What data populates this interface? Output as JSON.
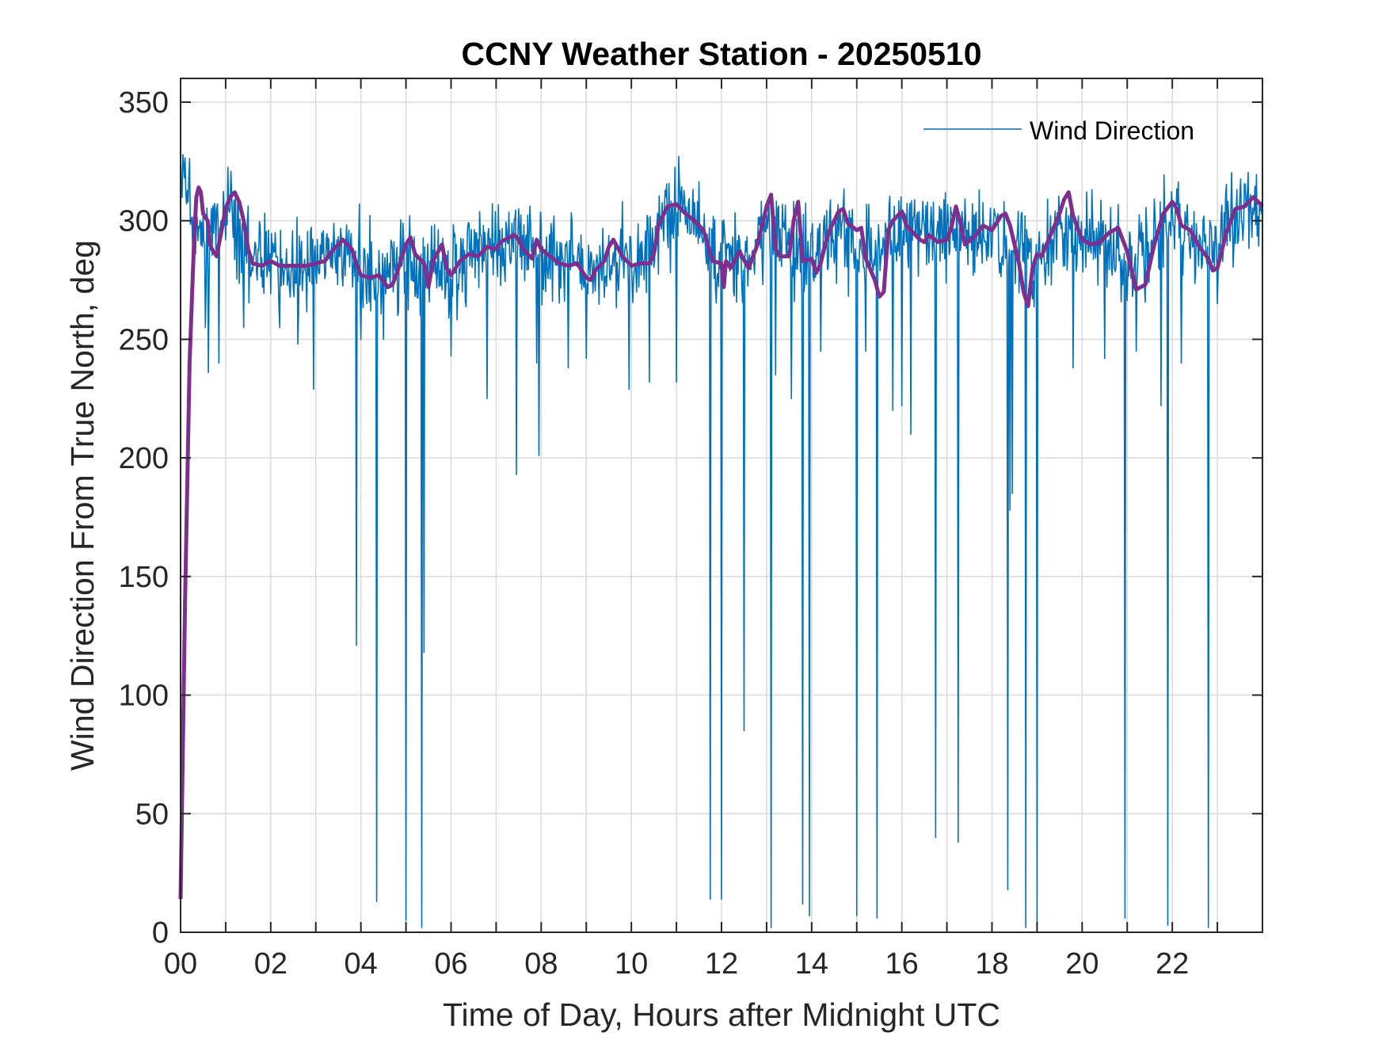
{
  "chart_data": {
    "type": "line",
    "title": "CCNY Weather Station - 20250510",
    "xlabel": "Time of Day, Hours after Midnight UTC",
    "ylabel": "Wind Direction From True North, deg",
    "xlim": [
      0,
      24
    ],
    "ylim": [
      0,
      360
    ],
    "grid": true,
    "legend_position": "top-right",
    "x_ticks": [
      0,
      2,
      4,
      6,
      8,
      10,
      12,
      14,
      16,
      18,
      20,
      22
    ],
    "x_tick_labels": [
      "00",
      "02",
      "04",
      "06",
      "08",
      "10",
      "12",
      "14",
      "16",
      "18",
      "20",
      "22"
    ],
    "y_ticks": [
      0,
      50,
      100,
      150,
      200,
      250,
      300,
      350
    ],
    "y_tick_labels": [
      "0",
      "50",
      "100",
      "150",
      "200",
      "250",
      "300",
      "350"
    ],
    "colors": {
      "raw": "#0072bd",
      "smoothed": "#7e2f8e"
    },
    "series": [
      {
        "name": "Wind Direction",
        "kind": "raw",
        "in_legend": true,
        "x_step_hours": 0.0166667,
        "baseline_points": [
          [
            0,
            325
          ],
          [
            0.3,
            300
          ],
          [
            0.6,
            290
          ],
          [
            1,
            305
          ],
          [
            1.2,
            300
          ],
          [
            1.5,
            285
          ],
          [
            2,
            283
          ],
          [
            2.5,
            282
          ],
          [
            3,
            283
          ],
          [
            3.5,
            290
          ],
          [
            4,
            280
          ],
          [
            4.5,
            276
          ],
          [
            5,
            285
          ],
          [
            5.5,
            280
          ],
          [
            6,
            282
          ],
          [
            6.5,
            287
          ],
          [
            7,
            290
          ],
          [
            7.5,
            292
          ],
          [
            8,
            286
          ],
          [
            8.5,
            283
          ],
          [
            9,
            278
          ],
          [
            9.5,
            285
          ],
          [
            10,
            280
          ],
          [
            10.5,
            290
          ],
          [
            11,
            305
          ],
          [
            11.5,
            298
          ],
          [
            12,
            282
          ],
          [
            12.5,
            284
          ],
          [
            13,
            300
          ],
          [
            13.5,
            288
          ],
          [
            14,
            286
          ],
          [
            14.5,
            296
          ],
          [
            15,
            290
          ],
          [
            15.5,
            288
          ],
          [
            16,
            296
          ],
          [
            16.5,
            293
          ],
          [
            17,
            296
          ],
          [
            17.5,
            292
          ],
          [
            18,
            296
          ],
          [
            18.5,
            288
          ],
          [
            19,
            284
          ],
          [
            19.5,
            296
          ],
          [
            20,
            292
          ],
          [
            20.5,
            293
          ],
          [
            21,
            280
          ],
          [
            21.5,
            290
          ],
          [
            22,
            302
          ],
          [
            22.5,
            290
          ],
          [
            23,
            288
          ],
          [
            23.5,
            303
          ],
          [
            24,
            306
          ]
        ],
        "noise_amplitude": 28,
        "dropouts": [
          [
            0.55,
            255
          ],
          [
            0.62,
            236
          ],
          [
            0.85,
            240
          ],
          [
            1.4,
            255
          ],
          [
            2.2,
            255
          ],
          [
            2.6,
            248
          ],
          [
            2.95,
            229
          ],
          [
            3.9,
            121
          ],
          [
            4.0,
            250
          ],
          [
            4.35,
            13
          ],
          [
            4.5,
            250
          ],
          [
            5.0,
            5
          ],
          [
            5.35,
            2
          ],
          [
            5.4,
            118
          ],
          [
            6.0,
            243
          ],
          [
            6.8,
            225
          ],
          [
            7.45,
            193
          ],
          [
            7.9,
            240
          ],
          [
            7.95,
            201
          ],
          [
            8.6,
            238
          ],
          [
            9.0,
            242
          ],
          [
            9.95,
            229
          ],
          [
            10.4,
            232
          ],
          [
            11.0,
            232
          ],
          [
            11.75,
            14
          ],
          [
            12.0,
            14
          ],
          [
            12.5,
            85
          ],
          [
            13.1,
            2
          ],
          [
            13.2,
            235
          ],
          [
            13.55,
            225
          ],
          [
            13.8,
            12
          ],
          [
            13.95,
            7
          ],
          [
            14.2,
            245
          ],
          [
            15.0,
            7
          ],
          [
            15.2,
            245
          ],
          [
            15.45,
            6
          ],
          [
            15.8,
            220
          ],
          [
            16.0,
            222
          ],
          [
            16.2,
            210
          ],
          [
            16.75,
            40
          ],
          [
            17.25,
            38
          ],
          [
            18.35,
            18
          ],
          [
            18.4,
            178
          ],
          [
            18.45,
            185
          ],
          [
            18.75,
            2
          ],
          [
            19.0,
            2
          ],
          [
            19.8,
            238
          ],
          [
            20.5,
            242
          ],
          [
            20.95,
            6
          ],
          [
            21.2,
            245
          ],
          [
            21.75,
            222
          ],
          [
            21.9,
            3
          ],
          [
            22.2,
            240
          ],
          [
            22.8,
            2
          ],
          [
            23.0,
            265
          ]
        ]
      },
      {
        "name": "Smoothed Wind Direction",
        "kind": "smoothed",
        "in_legend": false,
        "points": [
          [
            0,
            14
          ],
          [
            0.1,
            140
          ],
          [
            0.2,
            240
          ],
          [
            0.3,
            292
          ],
          [
            0.35,
            310
          ],
          [
            0.4,
            314
          ],
          [
            0.45,
            312
          ],
          [
            0.5,
            303
          ],
          [
            0.6,
            300
          ],
          [
            0.65,
            290
          ],
          [
            0.7,
            288
          ],
          [
            0.8,
            285
          ],
          [
            0.9,
            295
          ],
          [
            1.0,
            305
          ],
          [
            1.1,
            310
          ],
          [
            1.2,
            312
          ],
          [
            1.3,
            308
          ],
          [
            1.4,
            300
          ],
          [
            1.5,
            288
          ],
          [
            1.6,
            282
          ],
          [
            1.8,
            281
          ],
          [
            2.0,
            283
          ],
          [
            2.2,
            281
          ],
          [
            2.5,
            281
          ],
          [
            2.8,
            281
          ],
          [
            3.0,
            282
          ],
          [
            3.2,
            283
          ],
          [
            3.4,
            288
          ],
          [
            3.6,
            292
          ],
          [
            3.7,
            290
          ],
          [
            3.8,
            288
          ],
          [
            3.9,
            282
          ],
          [
            4.0,
            277
          ],
          [
            4.2,
            276
          ],
          [
            4.4,
            277
          ],
          [
            4.6,
            272
          ],
          [
            4.7,
            273
          ],
          [
            4.8,
            278
          ],
          [
            5.0,
            290
          ],
          [
            5.1,
            293
          ],
          [
            5.2,
            286
          ],
          [
            5.4,
            282
          ],
          [
            5.5,
            272
          ],
          [
            5.6,
            283
          ],
          [
            5.8,
            290
          ],
          [
            5.9,
            280
          ],
          [
            6.0,
            277
          ],
          [
            6.2,
            283
          ],
          [
            6.4,
            286
          ],
          [
            6.6,
            285
          ],
          [
            6.8,
            289
          ],
          [
            7.0,
            288
          ],
          [
            7.1,
            291
          ],
          [
            7.2,
            292
          ],
          [
            7.4,
            294
          ],
          [
            7.5,
            292
          ],
          [
            7.6,
            288
          ],
          [
            7.8,
            284
          ],
          [
            7.9,
            292
          ],
          [
            8.0,
            288
          ],
          [
            8.2,
            285
          ],
          [
            8.4,
            282
          ],
          [
            8.6,
            281
          ],
          [
            8.8,
            282
          ],
          [
            9.0,
            276
          ],
          [
            9.1,
            275
          ],
          [
            9.2,
            279
          ],
          [
            9.4,
            283
          ],
          [
            9.5,
            289
          ],
          [
            9.6,
            292
          ],
          [
            9.8,
            285
          ],
          [
            10.0,
            281
          ],
          [
            10.2,
            282
          ],
          [
            10.4,
            282
          ],
          [
            10.5,
            286
          ],
          [
            10.6,
            298
          ],
          [
            10.8,
            306
          ],
          [
            11.0,
            307
          ],
          [
            11.2,
            303
          ],
          [
            11.4,
            300
          ],
          [
            11.6,
            296
          ],
          [
            11.8,
            283
          ],
          [
            12.0,
            282
          ],
          [
            12.05,
            272
          ],
          [
            12.1,
            283
          ],
          [
            12.2,
            280
          ],
          [
            12.4,
            287
          ],
          [
            12.6,
            280
          ],
          [
            12.8,
            290
          ],
          [
            12.9,
            298
          ],
          [
            13.0,
            306
          ],
          [
            13.1,
            311
          ],
          [
            13.2,
            288
          ],
          [
            13.3,
            285
          ],
          [
            13.5,
            285
          ],
          [
            13.6,
            300
          ],
          [
            13.7,
            308
          ],
          [
            13.8,
            283
          ],
          [
            14.0,
            284
          ],
          [
            14.1,
            278
          ],
          [
            14.2,
            282
          ],
          [
            14.3,
            290
          ],
          [
            14.4,
            296
          ],
          [
            14.6,
            304
          ],
          [
            14.7,
            305
          ],
          [
            14.8,
            299
          ],
          [
            15.0,
            296
          ],
          [
            15.1,
            297
          ],
          [
            15.2,
            284
          ],
          [
            15.4,
            275
          ],
          [
            15.5,
            268
          ],
          [
            15.6,
            270
          ],
          [
            15.7,
            296
          ],
          [
            15.8,
            300
          ],
          [
            16.0,
            304
          ],
          [
            16.1,
            298
          ],
          [
            16.2,
            296
          ],
          [
            16.4,
            292
          ],
          [
            16.5,
            291
          ],
          [
            16.6,
            294
          ],
          [
            16.8,
            291
          ],
          [
            17.0,
            292
          ],
          [
            17.1,
            297
          ],
          [
            17.2,
            306
          ],
          [
            17.3,
            299
          ],
          [
            17.4,
            290
          ],
          [
            17.6,
            293
          ],
          [
            17.8,
            298
          ],
          [
            18.0,
            296
          ],
          [
            18.2,
            302
          ],
          [
            18.3,
            303
          ],
          [
            18.4,
            298
          ],
          [
            18.5,
            290
          ],
          [
            18.6,
            282
          ],
          [
            18.7,
            270
          ],
          [
            18.8,
            264
          ],
          [
            18.9,
            280
          ],
          [
            19.0,
            286
          ],
          [
            19.1,
            285
          ],
          [
            19.3,
            294
          ],
          [
            19.5,
            303
          ],
          [
            19.6,
            309
          ],
          [
            19.7,
            312
          ],
          [
            19.8,
            302
          ],
          [
            20.0,
            292
          ],
          [
            20.2,
            290
          ],
          [
            20.4,
            291
          ],
          [
            20.6,
            295
          ],
          [
            20.8,
            297
          ],
          [
            21.0,
            287
          ],
          [
            21.1,
            279
          ],
          [
            21.2,
            271
          ],
          [
            21.4,
            273
          ],
          [
            21.6,
            290
          ],
          [
            21.8,
            303
          ],
          [
            22.0,
            308
          ],
          [
            22.1,
            305
          ],
          [
            22.2,
            298
          ],
          [
            22.4,
            296
          ],
          [
            22.6,
            289
          ],
          [
            22.8,
            284
          ],
          [
            22.9,
            279
          ],
          [
            23.0,
            280
          ],
          [
            23.2,
            295
          ],
          [
            23.4,
            305
          ],
          [
            23.6,
            306
          ],
          [
            23.8,
            310
          ],
          [
            24.0,
            306
          ]
        ]
      }
    ]
  }
}
